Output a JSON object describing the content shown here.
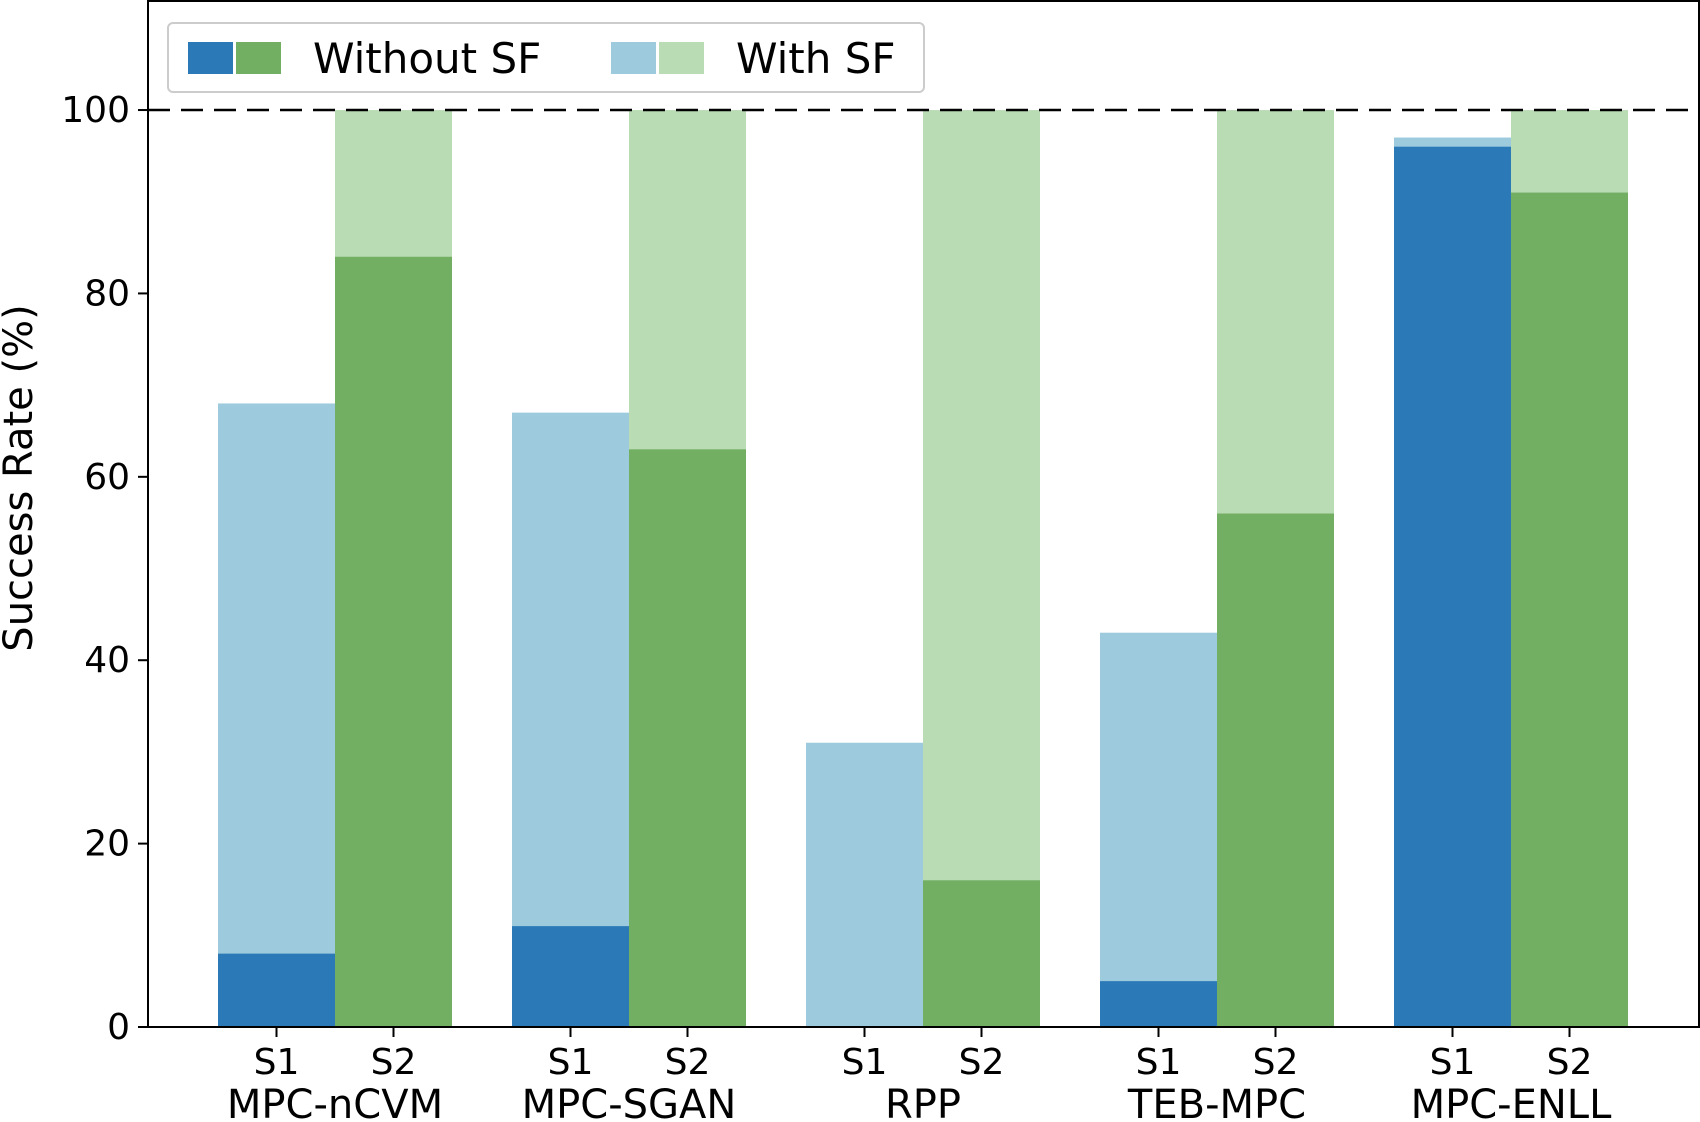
{
  "chart_data": {
    "type": "bar",
    "title": "",
    "xlabel": "",
    "ylabel": "Success Rate (%)",
    "ylim": [
      0,
      112
    ],
    "yticks": [
      0,
      20,
      40,
      60,
      80,
      100
    ],
    "grid": false,
    "reference_line": {
      "y": 100,
      "style": "dashed"
    },
    "groups": [
      "MPC-nCVM",
      "MPC-SGAN",
      "RPP",
      "TEB-MPC",
      "MPC-ENLL"
    ],
    "subcategories": [
      "S1",
      "S2"
    ],
    "series": [
      {
        "name": "Without SF",
        "scenario": "S1",
        "color": "#2b79b6",
        "values": [
          8,
          11,
          0,
          5,
          96
        ]
      },
      {
        "name": "With SF",
        "scenario": "S1",
        "color": "#9dcadc",
        "values": [
          68,
          67,
          31,
          43,
          97
        ]
      },
      {
        "name": "Without SF",
        "scenario": "S2",
        "color": "#72af62",
        "values": [
          84,
          63,
          16,
          56,
          91
        ]
      },
      {
        "name": "With SF",
        "scenario": "S2",
        "color": "#badcb5",
        "values": [
          100,
          100,
          100,
          100,
          100
        ]
      }
    ],
    "legend": {
      "position": "top-left",
      "entries": [
        {
          "label": "Without SF",
          "colors": [
            "#2b79b6",
            "#72af62"
          ]
        },
        {
          "label": "With SF",
          "colors": [
            "#9dcadc",
            "#badcb5"
          ]
        }
      ]
    }
  }
}
